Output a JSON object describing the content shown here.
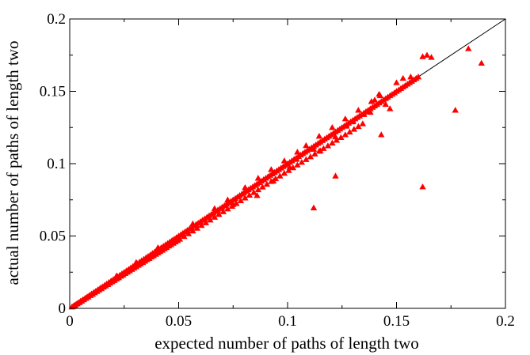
{
  "chart_data": {
    "type": "scatter",
    "title": "",
    "xlabel": "expected number of paths of length two",
    "ylabel": "actual number of paths of length two",
    "xlim": [
      0,
      0.2
    ],
    "ylim": [
      0,
      0.2
    ],
    "grid": false,
    "x_ticks": [
      "0",
      "0.05",
      "0.1",
      "0.15",
      "0.2"
    ],
    "y_ticks": [
      "0",
      "0.05",
      "0.1",
      "0.15",
      "0.2"
    ],
    "reference_line": {
      "from": [
        0,
        0
      ],
      "to": [
        0.2,
        0.2
      ],
      "color": "#000000"
    },
    "marker": {
      "shape": "triangle",
      "color": "#ff0000"
    },
    "series": [
      {
        "x": [
          0.001,
          0.002,
          0.003,
          0.004,
          0.005,
          0.006,
          0.007,
          0.008,
          0.009,
          0.01,
          0.011,
          0.012,
          0.013,
          0.014,
          0.015,
          0.016,
          0.017,
          0.018,
          0.019,
          0.02,
          0.021,
          0.022,
          0.023,
          0.024,
          0.025,
          0.026,
          0.027,
          0.028,
          0.029,
          0.03,
          0.031,
          0.032,
          0.033,
          0.034,
          0.035,
          0.036,
          0.037,
          0.038,
          0.039,
          0.04,
          0.041,
          0.042,
          0.043,
          0.044,
          0.045,
          0.046,
          0.047,
          0.048,
          0.049,
          0.05,
          0.051,
          0.052,
          0.053,
          0.054,
          0.055,
          0.056,
          0.057,
          0.058,
          0.059,
          0.06,
          0.061,
          0.062,
          0.063,
          0.064,
          0.065,
          0.066,
          0.067,
          0.068,
          0.069,
          0.07,
          0.071,
          0.072,
          0.073,
          0.074,
          0.075,
          0.076,
          0.077,
          0.078,
          0.079,
          0.08,
          0.081,
          0.082,
          0.083,
          0.084,
          0.085,
          0.086,
          0.087,
          0.088,
          0.089,
          0.09,
          0.091,
          0.092,
          0.093,
          0.094,
          0.095,
          0.096,
          0.097,
          0.098,
          0.099,
          0.1,
          0.101,
          0.102,
          0.103,
          0.104,
          0.105,
          0.106,
          0.107,
          0.108,
          0.109,
          0.11,
          0.111,
          0.112,
          0.113,
          0.114,
          0.115,
          0.116,
          0.117,
          0.118,
          0.119,
          0.12,
          0.121,
          0.122,
          0.123,
          0.124,
          0.125,
          0.126,
          0.127,
          0.128,
          0.129,
          0.13,
          0.131,
          0.132,
          0.133,
          0.134,
          0.135,
          0.136,
          0.137,
          0.138,
          0.139,
          0.14,
          0.141,
          0.142,
          0.143,
          0.144,
          0.145,
          0.146,
          0.147,
          0.148,
          0.149,
          0.15,
          0.151,
          0.152,
          0.153,
          0.154,
          0.155,
          0.156,
          0.157,
          0.158,
          0.159,
          0.16,
          0.0015,
          0.0025,
          0.0035,
          0.0045,
          0.0055,
          0.0065,
          0.0075,
          0.0085,
          0.0095,
          0.0105,
          0.0115,
          0.0125,
          0.0135,
          0.0145,
          0.0155,
          0.0165,
          0.0175,
          0.0185,
          0.0195,
          0.0205,
          0.0215,
          0.0225,
          0.0235,
          0.0245,
          0.0255,
          0.0265,
          0.0275,
          0.0285,
          0.0295,
          0.0305,
          0.0315,
          0.0325,
          0.0335,
          0.0345,
          0.0355,
          0.0365,
          0.0375,
          0.0385,
          0.0395,
          0.0405,
          0.0415,
          0.0425,
          0.0435,
          0.0445,
          0.0455,
          0.0465,
          0.0475,
          0.0485,
          0.0495,
          0.0505,
          0.0525,
          0.0545,
          0.0565,
          0.0585,
          0.0605,
          0.0625,
          0.0645,
          0.0665,
          0.0685,
          0.0705,
          0.0725,
          0.0745,
          0.0765,
          0.0785,
          0.0805,
          0.0825,
          0.0845,
          0.0865,
          0.0885,
          0.0905,
          0.0925,
          0.0945,
          0.0965,
          0.0985,
          0.1005,
          0.1025,
          0.1045,
          0.1065,
          0.1085,
          0.1105,
          0.1125,
          0.1145,
          0.1165,
          0.1185,
          0.1205,
          0.1225,
          0.1245,
          0.1265,
          0.1285,
          0.1305,
          0.1325,
          0.1345,
          0.0215,
          0.0305,
          0.0405,
          0.0565,
          0.0665,
          0.0725,
          0.0805,
          0.0865,
          0.0925,
          0.0985,
          0.1045,
          0.1085,
          0.1145,
          0.1205,
          0.1265,
          0.1325,
          0.1385,
          0.1425,
          0.075,
          0.086,
          0.0935,
          0.095,
          0.101,
          0.104,
          0.112,
          0.115,
          0.122,
          0.127,
          0.13,
          0.135,
          0.138,
          0.14,
          0.142,
          0.145,
          0.147,
          0.15,
          0.153,
          0.1565,
          0.162,
          0.164,
          0.166,
          0.183,
          0.189,
          0.177,
          0.162,
          0.112,
          0.122,
          0.143
        ],
        "y": [
          0.001,
          0.002,
          0.003,
          0.004,
          0.005,
          0.006,
          0.007,
          0.008,
          0.009,
          0.01,
          0.011,
          0.012,
          0.013,
          0.014,
          0.015,
          0.016,
          0.017,
          0.018,
          0.019,
          0.02,
          0.021,
          0.022,
          0.023,
          0.024,
          0.025,
          0.026,
          0.027,
          0.028,
          0.029,
          0.03,
          0.031,
          0.032,
          0.033,
          0.034,
          0.035,
          0.036,
          0.037,
          0.038,
          0.039,
          0.04,
          0.041,
          0.042,
          0.043,
          0.044,
          0.045,
          0.046,
          0.047,
          0.048,
          0.049,
          0.05,
          0.051,
          0.052,
          0.053,
          0.054,
          0.055,
          0.056,
          0.057,
          0.058,
          0.059,
          0.06,
          0.061,
          0.062,
          0.063,
          0.064,
          0.065,
          0.066,
          0.067,
          0.068,
          0.069,
          0.07,
          0.071,
          0.072,
          0.073,
          0.074,
          0.075,
          0.076,
          0.077,
          0.078,
          0.079,
          0.08,
          0.081,
          0.082,
          0.083,
          0.084,
          0.085,
          0.086,
          0.087,
          0.088,
          0.089,
          0.09,
          0.091,
          0.092,
          0.093,
          0.094,
          0.095,
          0.096,
          0.097,
          0.098,
          0.099,
          0.1,
          0.101,
          0.102,
          0.103,
          0.104,
          0.105,
          0.106,
          0.107,
          0.108,
          0.109,
          0.11,
          0.111,
          0.112,
          0.113,
          0.114,
          0.115,
          0.116,
          0.117,
          0.118,
          0.119,
          0.12,
          0.121,
          0.122,
          0.123,
          0.124,
          0.125,
          0.126,
          0.127,
          0.128,
          0.129,
          0.13,
          0.131,
          0.132,
          0.133,
          0.134,
          0.135,
          0.136,
          0.137,
          0.138,
          0.139,
          0.14,
          0.141,
          0.142,
          0.143,
          0.144,
          0.145,
          0.146,
          0.147,
          0.148,
          0.149,
          0.15,
          0.151,
          0.152,
          0.153,
          0.154,
          0.155,
          0.156,
          0.157,
          0.158,
          0.159,
          0.16,
          0.0013,
          0.0022,
          0.0032,
          0.0041,
          0.0051,
          0.006,
          0.007,
          0.0079,
          0.0089,
          0.0098,
          0.0108,
          0.0117,
          0.0127,
          0.0136,
          0.0146,
          0.0155,
          0.0165,
          0.0174,
          0.0184,
          0.0193,
          0.0203,
          0.0212,
          0.0222,
          0.0231,
          0.0241,
          0.025,
          0.026,
          0.0269,
          0.0279,
          0.0288,
          0.0298,
          0.0307,
          0.0317,
          0.0326,
          0.0336,
          0.0345,
          0.0355,
          0.0364,
          0.0374,
          0.0383,
          0.0393,
          0.0402,
          0.0412,
          0.0421,
          0.0431,
          0.044,
          0.045,
          0.0459,
          0.0469,
          0.0478,
          0.0497,
          0.0516,
          0.0535,
          0.0554,
          0.0573,
          0.0592,
          0.0611,
          0.063,
          0.0649,
          0.0668,
          0.0687,
          0.0706,
          0.0725,
          0.0744,
          0.0763,
          0.0782,
          0.0801,
          0.082,
          0.0839,
          0.0858,
          0.0877,
          0.0896,
          0.0915,
          0.0934,
          0.0953,
          0.0972,
          0.0991,
          0.101,
          0.1029,
          0.1048,
          0.1067,
          0.1086,
          0.1105,
          0.1124,
          0.1143,
          0.1162,
          0.1181,
          0.12,
          0.1219,
          0.1238,
          0.1257,
          0.1276,
          0.0225,
          0.0318,
          0.042,
          0.0585,
          0.069,
          0.075,
          0.0835,
          0.09,
          0.096,
          0.102,
          0.108,
          0.1125,
          0.119,
          0.125,
          0.131,
          0.137,
          0.143,
          0.147,
          0.0718,
          0.078,
          0.088,
          0.095,
          0.0975,
          0.103,
          0.11,
          0.109,
          0.1185,
          0.126,
          0.129,
          0.134,
          0.1355,
          0.144,
          0.148,
          0.141,
          0.138,
          0.156,
          0.159,
          0.16,
          0.174,
          0.175,
          0.1735,
          0.1795,
          0.1695,
          0.137,
          0.084,
          0.0695,
          0.0915,
          0.12
        ]
      }
    ]
  }
}
